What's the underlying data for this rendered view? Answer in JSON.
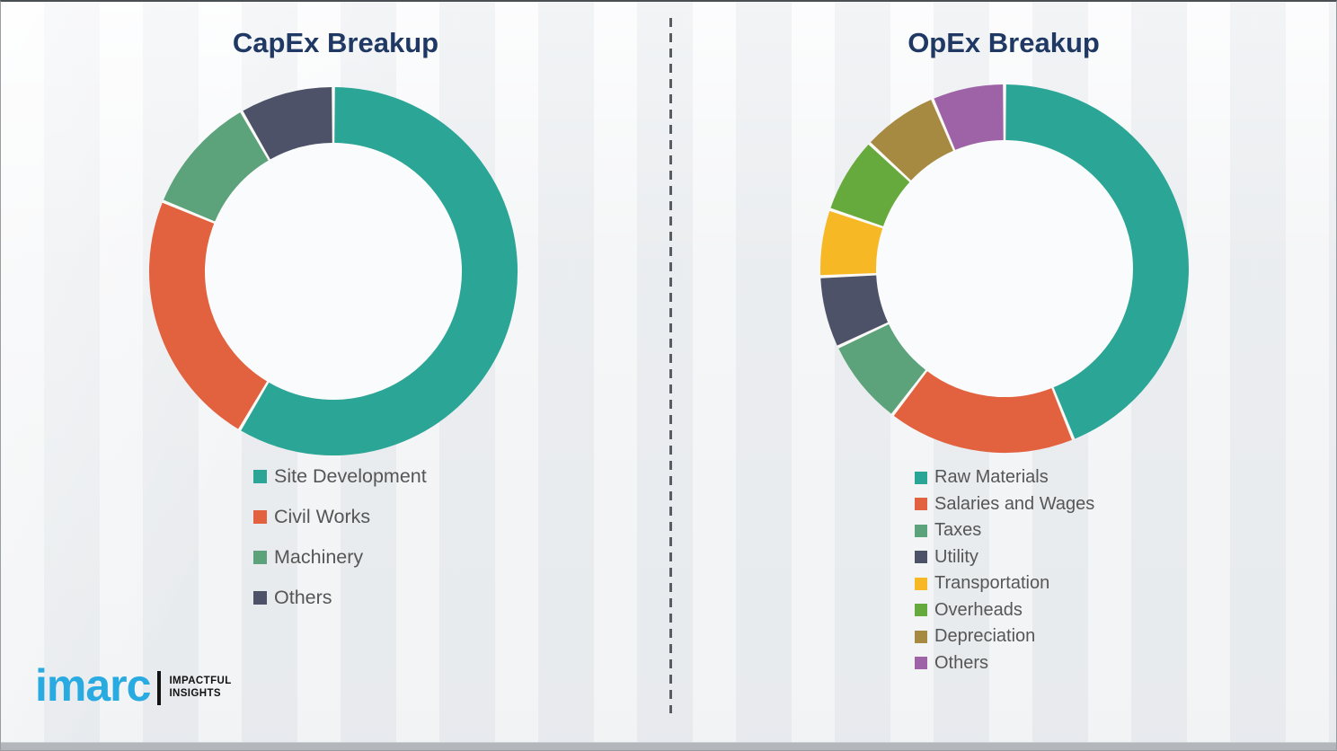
{
  "page": {
    "background_color": "#eff1f3",
    "divider_color": "#585d64",
    "title_color": "#1f3864",
    "legend_text_color": "#565656",
    "segment_gap_color": "#fbfaf6"
  },
  "logo": {
    "brand": "imarc",
    "tagline_line1": "IMPACTFUL",
    "tagline_line2": "INSIGHTS",
    "brand_color": "#29abe2",
    "tagline_color": "#121212"
  },
  "chart_data": [
    {
      "type": "pie",
      "variant": "donut",
      "title": "CapEx Breakup",
      "direction": "clockwise",
      "start_angle_deg": 0,
      "legend_position": "below-left",
      "segments": [
        {
          "label": "Site Development",
          "value": 58.5,
          "color": "#2aa596"
        },
        {
          "label": "Civil Works",
          "value": 22.7,
          "color": "#e2613f"
        },
        {
          "label": "Machinery",
          "value": 10.5,
          "color": "#5ca27b"
        },
        {
          "label": "Others",
          "value": 8.3,
          "color": "#4d5268"
        }
      ]
    },
    {
      "type": "pie",
      "variant": "donut",
      "title": "OpEx Breakup",
      "direction": "clockwise",
      "start_angle_deg": 0,
      "legend_position": "below-left",
      "segments": [
        {
          "label": "Raw Materials",
          "value": 43.9,
          "color": "#2aa596"
        },
        {
          "label": "Salaries and Wages",
          "value": 16.5,
          "color": "#e2613f"
        },
        {
          "label": "Taxes",
          "value": 7.6,
          "color": "#5ca27b"
        },
        {
          "label": "Utility",
          "value": 6.3,
          "color": "#4d5268"
        },
        {
          "label": "Transportation",
          "value": 5.9,
          "color": "#f7b825"
        },
        {
          "label": "Overheads",
          "value": 6.7,
          "color": "#66a93d"
        },
        {
          "label": "Depreciation",
          "value": 6.7,
          "color": "#a68a41"
        },
        {
          "label": "Others",
          "value": 6.4,
          "color": "#9d63a6"
        }
      ]
    }
  ]
}
